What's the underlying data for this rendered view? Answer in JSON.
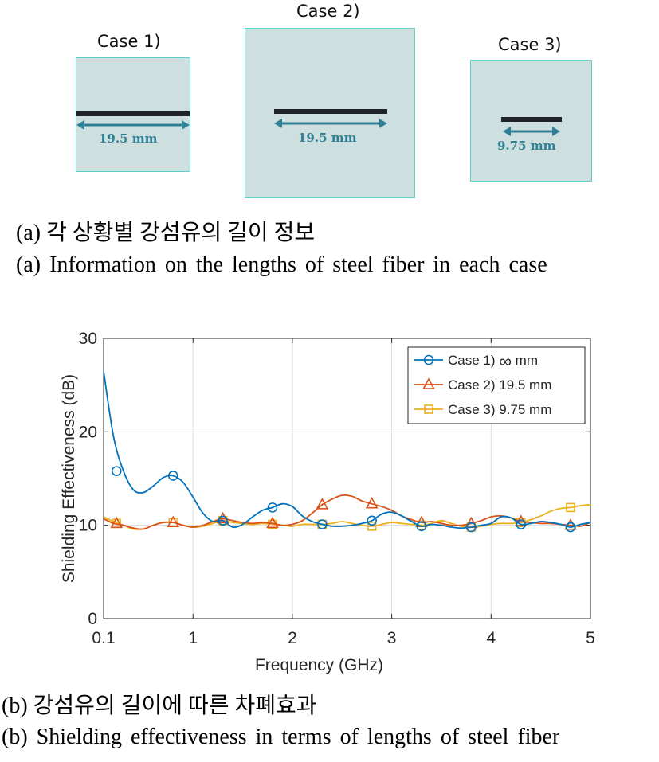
{
  "panel_a": {
    "cases": [
      {
        "label": "Case 1)",
        "length_label": "19.5 mm"
      },
      {
        "label": "Case 2)",
        "length_label": "19.5 mm"
      },
      {
        "label": "Case 3)",
        "length_label": "9.75 mm"
      }
    ],
    "caption_kr": "(a) 각 상황별 강섬유의 길이 정보",
    "caption_en": "(a) Information on the lengths of steel fiber in each case"
  },
  "panel_b": {
    "caption_kr": "(b) 강섬유의 길이에 따른 차폐효과",
    "caption_en": "(b) Shielding effectiveness in terms of lengths of steel fiber"
  },
  "colors": {
    "box_fill": "#cde0df",
    "box_border": "#5fd0c6",
    "fiber": "#1f2328",
    "arrow": "#2f7f97"
  },
  "chart_data": {
    "type": "line",
    "xlabel": "Frequency (GHz)",
    "ylabel": "Shielding Effectiveness (dB)",
    "xlim": [
      0.1,
      5
    ],
    "ylim": [
      0,
      30
    ],
    "xticks": [
      0.1,
      1,
      2,
      3,
      4,
      5
    ],
    "xtick_labels": [
      "0.1",
      "1",
      "2",
      "3",
      "4",
      "5"
    ],
    "yticks": [
      0,
      10,
      20,
      30
    ],
    "ytick_labels": [
      "0",
      "10",
      "20",
      "30"
    ],
    "grid": true,
    "legend_position": "top-right",
    "series": [
      {
        "name": "Case 1) ∞ mm",
        "legend_prefix": "Case 1)",
        "legend_symbol": "∞",
        "legend_suffix": "mm",
        "color": "#0072bd",
        "marker": "circle",
        "x": [
          0.1,
          0.2,
          0.3,
          0.4,
          0.5,
          0.6,
          0.7,
          0.8,
          0.9,
          1.0,
          1.1,
          1.2,
          1.3,
          1.4,
          1.5,
          1.6,
          1.7,
          1.8,
          1.9,
          2.0,
          2.1,
          2.2,
          2.3,
          2.4,
          2.5,
          2.6,
          2.7,
          2.8,
          2.9,
          3.0,
          3.1,
          3.2,
          3.3,
          3.4,
          3.5,
          3.6,
          3.7,
          3.8,
          3.9,
          4.0,
          4.1,
          4.2,
          4.3,
          4.4,
          4.5,
          4.6,
          4.7,
          4.8,
          4.9,
          5.0
        ],
        "y": [
          26.5,
          19.5,
          15.8,
          13.8,
          13.5,
          14.2,
          15.1,
          15.3,
          14.6,
          13.0,
          11.3,
          10.4,
          10.5,
          9.8,
          10.1,
          10.9,
          11.6,
          11.9,
          12.3,
          12.0,
          11.0,
          10.4,
          10.1,
          9.9,
          9.9,
          10.0,
          10.2,
          10.5,
          11.2,
          11.4,
          11.0,
          10.4,
          9.9,
          10.1,
          10.0,
          9.8,
          9.7,
          9.8,
          10.0,
          10.2,
          10.9,
          10.8,
          10.1,
          10.2,
          10.4,
          10.3,
          10.1,
          9.8,
          10.1,
          10.3
        ],
        "marker_x": [
          0.23,
          0.8,
          1.3,
          1.8,
          2.3,
          2.8,
          3.3,
          3.8,
          4.3,
          4.8
        ],
        "marker_y": [
          15.8,
          15.3,
          10.5,
          11.9,
          10.1,
          10.5,
          9.9,
          9.8,
          10.1,
          9.8
        ]
      },
      {
        "name": "Case 2) 19.5 mm",
        "color": "#d95319",
        "marker": "triangle",
        "x": [
          0.1,
          0.2,
          0.3,
          0.4,
          0.5,
          0.6,
          0.7,
          0.8,
          0.9,
          1.0,
          1.1,
          1.2,
          1.3,
          1.4,
          1.5,
          1.6,
          1.7,
          1.8,
          1.9,
          2.0,
          2.1,
          2.2,
          2.3,
          2.4,
          2.5,
          2.6,
          2.7,
          2.8,
          2.9,
          3.0,
          3.1,
          3.2,
          3.3,
          3.4,
          3.5,
          3.6,
          3.7,
          3.8,
          3.9,
          4.0,
          4.1,
          4.2,
          4.3,
          4.4,
          4.5,
          4.6,
          4.7,
          4.8,
          4.9,
          5.0
        ],
        "y": [
          10.7,
          10.2,
          10.0,
          9.7,
          9.6,
          10.0,
          10.3,
          10.3,
          10.0,
          9.8,
          10.0,
          10.4,
          10.7,
          10.5,
          10.3,
          10.2,
          10.3,
          10.2,
          10.0,
          10.1,
          10.5,
          11.3,
          12.2,
          12.8,
          13.2,
          13.1,
          12.6,
          12.3,
          12.0,
          11.6,
          11.0,
          10.6,
          10.3,
          10.4,
          10.2,
          10.0,
          10.0,
          10.2,
          10.5,
          10.9,
          11.0,
          10.8,
          10.4,
          10.3,
          10.2,
          10.2,
          10.1,
          10.0,
          9.9,
          10.3
        ],
        "marker_x": [
          0.23,
          0.8,
          1.3,
          1.8,
          2.3,
          2.8,
          3.3,
          3.8,
          4.3,
          4.8
        ],
        "marker_y": [
          10.2,
          10.3,
          10.7,
          10.2,
          12.2,
          12.3,
          10.3,
          10.2,
          10.4,
          10.0
        ]
      },
      {
        "name": "Case 3) 9.75 mm",
        "color": "#edb120",
        "marker": "square",
        "x": [
          0.1,
          0.2,
          0.3,
          0.4,
          0.5,
          0.6,
          0.7,
          0.8,
          0.9,
          1.0,
          1.1,
          1.2,
          1.3,
          1.4,
          1.5,
          1.6,
          1.7,
          1.8,
          1.9,
          2.0,
          2.1,
          2.2,
          2.3,
          2.4,
          2.5,
          2.6,
          2.7,
          2.8,
          2.9,
          3.0,
          3.1,
          3.2,
          3.3,
          3.4,
          3.5,
          3.6,
          3.7,
          3.8,
          3.9,
          4.0,
          4.1,
          4.2,
          4.3,
          4.4,
          4.5,
          4.6,
          4.7,
          4.8,
          4.9,
          5.0
        ],
        "y": [
          10.9,
          10.4,
          10.0,
          9.6,
          9.6,
          10.0,
          10.3,
          10.3,
          10.0,
          9.8,
          9.9,
          10.2,
          10.5,
          10.3,
          10.2,
          10.1,
          10.2,
          10.1,
          10.0,
          9.9,
          10.1,
          10.1,
          10.1,
          10.2,
          10.4,
          10.2,
          10.0,
          9.9,
          10.1,
          10.3,
          10.2,
          10.1,
          10.0,
          10.2,
          10.5,
          10.2,
          9.9,
          9.8,
          9.9,
          10.1,
          10.2,
          10.2,
          10.3,
          10.6,
          11.0,
          11.5,
          11.8,
          11.9,
          12.1,
          12.2
        ],
        "marker_x": [
          0.23,
          0.8,
          1.3,
          1.8,
          2.3,
          2.8,
          3.3,
          3.8,
          4.3,
          4.8
        ],
        "marker_y": [
          10.2,
          10.3,
          10.5,
          10.1,
          10.1,
          9.9,
          10.0,
          9.8,
          10.3,
          11.9
        ]
      }
    ]
  }
}
